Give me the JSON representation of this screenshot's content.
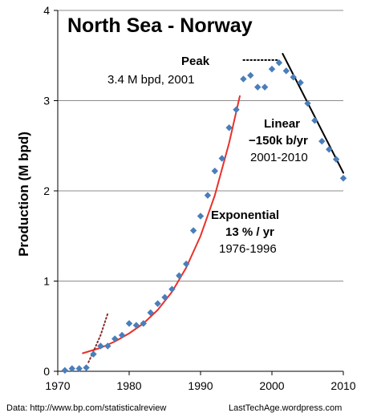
{
  "chart_data": {
    "type": "scatter",
    "title": "North Sea - Norway",
    "xlabel": "",
    "ylabel": "Production (M bpd)",
    "xlim": [
      1970,
      2010
    ],
    "ylim": [
      0,
      4
    ],
    "x_ticks": [
      "1970",
      "1980",
      "1990",
      "2000",
      "2010"
    ],
    "y_ticks": [
      "0",
      "1",
      "2",
      "3",
      "4"
    ],
    "grid": "horizontal",
    "legend": "none",
    "series": [
      {
        "marker": "diamond",
        "color": "#4a7ebb",
        "x": [
          1971,
          1972,
          1973,
          1974,
          1975,
          1976,
          1977,
          1978,
          1979,
          1980,
          1981,
          1982,
          1983,
          1984,
          1985,
          1986,
          1987,
          1988,
          1989,
          1990,
          1991,
          1992,
          1993,
          1994,
          1995,
          1996,
          1997,
          1998,
          1999,
          2000,
          2001,
          2002,
          2003,
          2004,
          2005,
          2006,
          2007,
          2008,
          2009,
          2010
        ],
        "y": [
          0.01,
          0.03,
          0.03,
          0.04,
          0.19,
          0.28,
          0.28,
          0.36,
          0.4,
          0.53,
          0.51,
          0.53,
          0.65,
          0.75,
          0.82,
          0.91,
          1.06,
          1.19,
          1.56,
          1.72,
          1.95,
          2.22,
          2.36,
          2.7,
          2.9,
          3.24,
          3.28,
          3.15,
          3.15,
          3.35,
          3.42,
          3.33,
          3.26,
          3.2,
          2.97,
          2.78,
          2.55,
          2.46,
          2.35,
          2.14
        ]
      },
      {
        "style": "line",
        "color": "#e8312a",
        "x": [
          1973.5,
          1976,
          1978,
          1980,
          1982,
          1984,
          1986,
          1988,
          1990,
          1992,
          1994,
          1995.5
        ],
        "y": [
          0.2,
          0.26,
          0.33,
          0.42,
          0.53,
          0.68,
          0.88,
          1.15,
          1.5,
          1.95,
          2.53,
          3.05
        ]
      },
      {
        "style": "dotted",
        "color": "#8b2a2a",
        "x": [
          1974.3,
          1975,
          1976,
          1977
        ],
        "y": [
          0.1,
          0.22,
          0.4,
          0.64
        ]
      },
      {
        "style": "line",
        "color": "#000000",
        "x": [
          2001.5,
          2010
        ],
        "y": [
          3.52,
          2.2
        ]
      },
      {
        "style": "dotted",
        "color": "#000000",
        "x": [
          1996,
          2001
        ],
        "y": [
          3.45,
          3.45
        ]
      }
    ],
    "annotations": {
      "peak_label": "Peak",
      "peak_detail": "3.4 M bpd, 2001",
      "linear_label": "Linear",
      "linear_rate": "−150k b/yr",
      "linear_years": "2001-2010",
      "exp_label": "Exponential",
      "exp_rate": "13 % / yr",
      "exp_years": "1976-1996"
    }
  },
  "footer": {
    "source": "Data: http://www.bp.com/statisticalreview",
    "credit": "LastTechAge.wordpress.com"
  }
}
